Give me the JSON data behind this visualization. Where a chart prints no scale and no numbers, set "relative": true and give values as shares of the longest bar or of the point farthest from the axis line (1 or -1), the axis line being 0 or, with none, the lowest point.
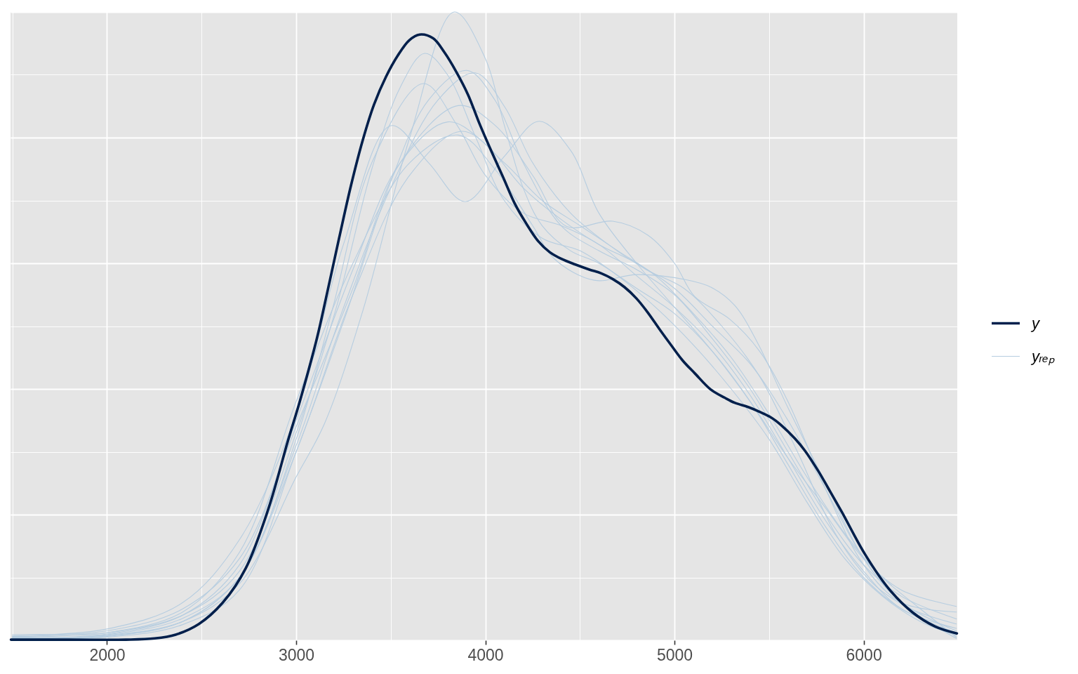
{
  "chart_data": {
    "type": "line",
    "relative": true,
    "grid": true,
    "legend": "right",
    "xlim": [
      1490,
      6495
    ],
    "xticks": [
      2000,
      3000,
      4000,
      5000,
      6000
    ],
    "series": [
      {
        "name": "y",
        "color": "#011f4b",
        "x": [
          1492,
          1800,
          2100,
          2252,
          2363,
          2486,
          2612,
          2734,
          2856,
          2956,
          3019,
          3105,
          3134,
          3227,
          3290,
          3353,
          3412,
          3475,
          3538,
          3598,
          3653,
          3724,
          3783,
          3846,
          3909,
          3968,
          4031,
          4094,
          4154,
          4217,
          4280,
          4339,
          4402,
          4476,
          4550,
          4613,
          4673,
          4736,
          4799,
          4858,
          4921,
          4984,
          5044,
          5107,
          5192,
          5266,
          5318,
          5392,
          5440,
          5514,
          5562,
          5637,
          5689,
          5763,
          5811,
          5885,
          6007,
          6133,
          6256,
          6378,
          6493
        ],
        "values": [
          0.001,
          0.001,
          0.001,
          0.003,
          0.009,
          0.026,
          0.06,
          0.115,
          0.212,
          0.317,
          0.38,
          0.475,
          0.512,
          0.64,
          0.724,
          0.797,
          0.853,
          0.897,
          0.931,
          0.955,
          0.964,
          0.958,
          0.936,
          0.905,
          0.868,
          0.823,
          0.779,
          0.737,
          0.696,
          0.663,
          0.635,
          0.618,
          0.607,
          0.598,
          0.59,
          0.584,
          0.575,
          0.562,
          0.544,
          0.522,
          0.495,
          0.469,
          0.445,
          0.425,
          0.399,
          0.386,
          0.378,
          0.371,
          0.365,
          0.354,
          0.343,
          0.321,
          0.302,
          0.268,
          0.243,
          0.204,
          0.137,
          0.082,
          0.045,
          0.022,
          0.011
        ]
      },
      {
        "name": "yᵣₑₚ",
        "color": "#b6cde0",
        "x": [
          1500,
          2000,
          2400,
          2700,
          3000,
          3150,
          3353,
          3600,
          3835,
          3994,
          4100,
          4200,
          4300,
          4450,
          4600,
          4800,
          5000,
          5200,
          5400,
          5600,
          5800,
          6000,
          6200,
          6490
        ],
        "values": [
          0.004,
          0.008,
          0.03,
          0.09,
          0.26,
          0.345,
          0.525,
          0.8,
          1.0,
          0.93,
          0.82,
          0.72,
          0.66,
          0.62,
          0.6,
          0.56,
          0.52,
          0.46,
          0.38,
          0.28,
          0.18,
          0.1,
          0.05,
          0.012
        ]
      },
      {
        "color": "#b6cde0",
        "x": [
          1500,
          2000,
          2400,
          2700,
          3000,
          3208,
          3400,
          3550,
          3679,
          3800,
          3950,
          4100,
          4300,
          4500,
          4700,
          4900,
          5100,
          5300,
          5500,
          5700,
          5900,
          6100,
          6300,
          6490
        ],
        "values": [
          0.005,
          0.012,
          0.04,
          0.11,
          0.33,
          0.525,
          0.75,
          0.88,
          0.934,
          0.9,
          0.8,
          0.7,
          0.64,
          0.62,
          0.58,
          0.53,
          0.47,
          0.4,
          0.32,
          0.22,
          0.13,
          0.07,
          0.03,
          0.008
        ]
      },
      {
        "color": "#b6cde0",
        "x": [
          1500,
          2000,
          2400,
          2700,
          3000,
          3190,
          3400,
          3672,
          3850,
          4000,
          4200,
          4400,
          4600,
          4800,
          5000,
          5200,
          5400,
          5600,
          5800,
          6000,
          6200,
          6490
        ],
        "values": [
          0.002,
          0.009,
          0.035,
          0.1,
          0.32,
          0.525,
          0.76,
          0.886,
          0.82,
          0.74,
          0.68,
          0.66,
          0.63,
          0.58,
          0.53,
          0.47,
          0.39,
          0.29,
          0.19,
          0.11,
          0.05,
          0.019
        ]
      },
      {
        "color": "#b6cde0",
        "x": [
          1500,
          2000,
          2400,
          2700,
          3000,
          3271,
          3500,
          3700,
          3902,
          4050,
          4200,
          4400,
          4600,
          4800,
          5000,
          5200,
          5400,
          5600,
          5800,
          6000,
          6200,
          6490
        ],
        "values": [
          0.003,
          0.005,
          0.025,
          0.08,
          0.3,
          0.525,
          0.73,
          0.86,
          0.907,
          0.86,
          0.76,
          0.66,
          0.62,
          0.59,
          0.55,
          0.48,
          0.4,
          0.3,
          0.2,
          0.12,
          0.07,
          0.034
        ]
      },
      {
        "color": "#b6cde0",
        "x": [
          1500,
          2000,
          2400,
          2700,
          3000,
          3245,
          3500,
          3750,
          3946,
          4100,
          4250,
          4450,
          4650,
          4850,
          5050,
          5250,
          5450,
          5650,
          5850,
          6050,
          6250,
          6490
        ],
        "values": [
          0.001,
          0.006,
          0.03,
          0.1,
          0.31,
          0.525,
          0.72,
          0.86,
          0.903,
          0.85,
          0.76,
          0.68,
          0.63,
          0.59,
          0.56,
          0.5,
          0.42,
          0.3,
          0.17,
          0.09,
          0.05,
          0.026
        ]
      },
      {
        "color": "#b6cde0",
        "x": [
          1500,
          2000,
          2400,
          2700,
          3000,
          3300,
          3550,
          3857,
          4050,
          4250,
          4428,
          4673,
          4858,
          5000,
          5107,
          5292,
          5450,
          5600,
          5800,
          6000,
          6200,
          6490
        ],
        "values": [
          0.006,
          0.015,
          0.05,
          0.13,
          0.34,
          0.56,
          0.76,
          0.851,
          0.82,
          0.74,
          0.659,
          0.667,
          0.645,
          0.6,
          0.547,
          0.511,
          0.46,
          0.38,
          0.24,
          0.12,
          0.06,
          0.045
        ]
      },
      {
        "color": "#b6cde0",
        "x": [
          1500,
          2000,
          2400,
          2700,
          3000,
          3250,
          3501,
          3700,
          3894,
          4100,
          4284,
          4450,
          4600,
          4800,
          5000,
          5200,
          5400,
          5600,
          5800,
          6000,
          6200,
          6490
        ],
        "values": [
          0.007,
          0.018,
          0.06,
          0.16,
          0.36,
          0.63,
          0.819,
          0.76,
          0.698,
          0.77,
          0.826,
          0.78,
          0.68,
          0.6,
          0.53,
          0.46,
          0.38,
          0.29,
          0.21,
          0.13,
          0.08,
          0.054
        ]
      },
      {
        "color": "#b6cde0",
        "x": [
          1500,
          2000,
          2400,
          2700,
          3000,
          3300,
          3550,
          3802,
          4000,
          4200,
          4400,
          4600,
          4800,
          5000,
          5200,
          5400,
          5600,
          5800,
          6000,
          6200,
          6490
        ],
        "values": [
          0.003,
          0.01,
          0.04,
          0.12,
          0.35,
          0.59,
          0.76,
          0.825,
          0.79,
          0.72,
          0.67,
          0.63,
          0.6,
          0.56,
          0.5,
          0.44,
          0.35,
          0.24,
          0.13,
          0.06,
          0.015
        ]
      },
      {
        "color": "#b6cde0",
        "x": [
          1500,
          2000,
          2400,
          2700,
          3000,
          3300,
          3600,
          3876,
          4100,
          4300,
          4500,
          4700,
          4900,
          5100,
          5300,
          5500,
          5700,
          5900,
          6100,
          6300,
          6490
        ],
        "values": [
          0.002,
          0.007,
          0.03,
          0.1,
          0.3,
          0.55,
          0.74,
          0.81,
          0.76,
          0.7,
          0.66,
          0.62,
          0.58,
          0.52,
          0.45,
          0.36,
          0.26,
          0.17,
          0.1,
          0.05,
          0.005
        ]
      },
      {
        "color": "#b6cde0",
        "x": [
          1500,
          1800,
          2000,
          2400,
          2700,
          3000,
          3300,
          3600,
          3857,
          4050,
          4250,
          4365,
          4576,
          4800,
          5058,
          5192,
          5318,
          5440,
          5600,
          5800,
          6000,
          6200,
          6490
        ],
        "values": [
          0.009,
          0.01,
          0.012,
          0.045,
          0.14,
          0.38,
          0.6,
          0.76,
          0.804,
          0.75,
          0.66,
          0.607,
          0.573,
          0.582,
          0.574,
          0.562,
          0.533,
          0.473,
          0.37,
          0.25,
          0.13,
          0.06,
          0.003
        ]
      }
    ]
  }
}
